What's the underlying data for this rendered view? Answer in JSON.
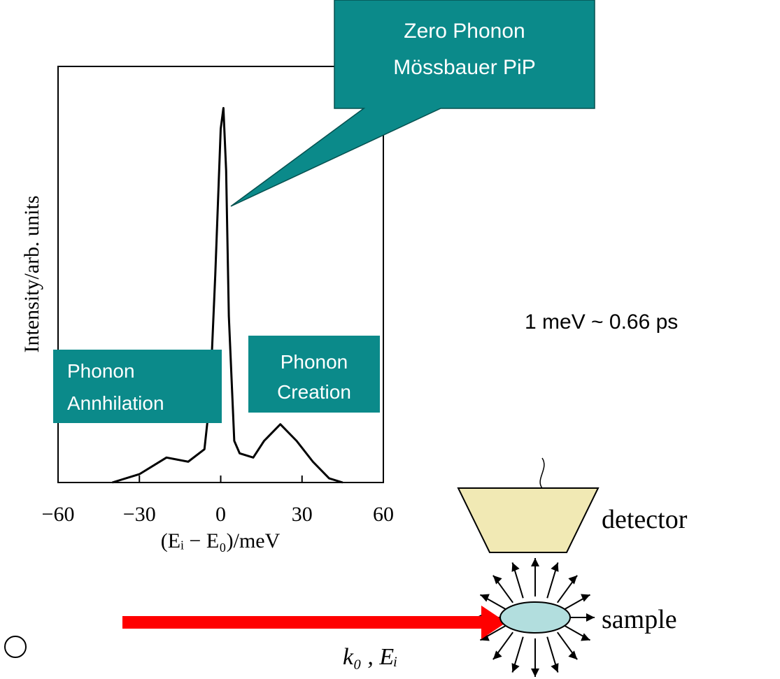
{
  "chart_data": {
    "type": "line",
    "x_label": "(Eᵢ − E₀)/meV",
    "y_label": "Intensity/arb. units",
    "xlim": [
      -60,
      60
    ],
    "xticks": [
      {
        "value": -60,
        "label": "−60"
      },
      {
        "value": -30,
        "label": "−30"
      },
      0,
      30,
      60
    ],
    "ylim": [
      0,
      1
    ],
    "series": [
      {
        "color": "#000000",
        "x": [
          -40,
          -30,
          -20,
          -12,
          -6,
          -4,
          -2,
          0,
          1,
          2,
          3,
          5,
          7,
          12,
          16,
          22,
          28,
          34,
          40,
          45
        ],
        "values": [
          0,
          0.02,
          0.06,
          0.05,
          0.08,
          0.2,
          0.5,
          0.85,
          0.9,
          0.75,
          0.4,
          0.1,
          0.07,
          0.06,
          0.1,
          0.14,
          0.1,
          0.05,
          0.01,
          0
        ]
      }
    ],
    "annotations": {
      "peak_callout": [
        "Zero Phonon",
        "Mössbauer PiP"
      ],
      "annihilation": [
        "Phonon",
        "Annhilation"
      ],
      "creation": [
        "Phonon",
        "Creation"
      ],
      "conversion": "1 meV ~ 0.66 ps",
      "detector": "detector",
      "sample": "sample",
      "beam": "k₀ , Eᵢ"
    }
  }
}
